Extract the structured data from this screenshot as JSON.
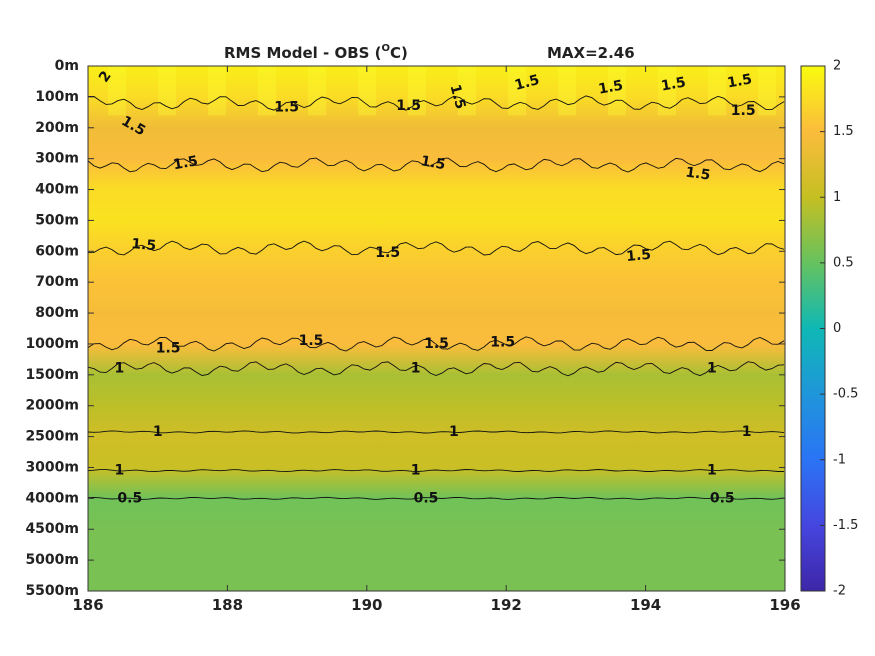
{
  "chart_data": {
    "type": "heatmap",
    "title": "RMS Model - OBS (",
    "title_unit": "C)",
    "title_degree": "O",
    "max_label": "MAX=2.46",
    "x_ticks": [
      "186",
      "188",
      "190",
      "192",
      "194",
      "196"
    ],
    "xlim": [
      186,
      196
    ],
    "y_ticks": [
      "0m",
      "100m",
      "200m",
      "300m",
      "400m",
      "500m",
      "600m",
      "700m",
      "800m",
      "1000m",
      "1500m",
      "2000m",
      "2500m",
      "3000m",
      "4000m",
      "4500m",
      "5000m",
      "5500m"
    ],
    "colorbar": {
      "ticks": [
        "2",
        "1.5",
        "1",
        "0.5",
        "0",
        "-0.5",
        "-1",
        "-1.5",
        "-2"
      ],
      "range": [
        -2,
        2
      ]
    },
    "depth_profile": [
      1.9,
      1.75,
      1.4,
      1.5,
      1.75,
      1.8,
      1.65,
      1.55,
      1.45,
      1.5,
      0.85,
      0.95,
      1.1,
      1.05,
      0.55,
      0.6,
      0.6,
      0.6
    ],
    "contour_levels": [
      {
        "value": 1.5,
        "label": "1.5",
        "depth_index": 1.2
      },
      {
        "value": 1.5,
        "label": "1.5",
        "depth_index": 3.2
      },
      {
        "value": 1.5,
        "label": "1.5",
        "depth_index": 5.9
      },
      {
        "value": 1.5,
        "label": "1.5",
        "depth_index": 9.0
      },
      {
        "value": 1,
        "label": "1",
        "depth_index": 9.8
      },
      {
        "value": 1,
        "label": "1",
        "depth_index": 11.85
      },
      {
        "value": 1,
        "label": "1",
        "depth_index": 13.1
      },
      {
        "value": 0.5,
        "label": "0.5",
        "depth_index": 14.0
      }
    ],
    "contour_labels": [
      {
        "text": "2",
        "x": 186.25,
        "y": 0.35,
        "rot": -55
      },
      {
        "text": "1.5",
        "x": 186.65,
        "y": 1.95,
        "rot": 30
      },
      {
        "text": "1.5",
        "x": 187.4,
        "y": 3.15,
        "rot": -10
      },
      {
        "text": "1.5",
        "x": 188.85,
        "y": 1.35,
        "rot": 0
      },
      {
        "text": "1.5",
        "x": 190.6,
        "y": 1.3,
        "rot": 0
      },
      {
        "text": "1.5",
        "x": 191.3,
        "y": 1.0,
        "rot": 75
      },
      {
        "text": "1.5",
        "x": 192.3,
        "y": 0.55,
        "rot": -15
      },
      {
        "text": "1.5",
        "x": 193.5,
        "y": 0.7,
        "rot": -10
      },
      {
        "text": "1.5",
        "x": 194.4,
        "y": 0.6,
        "rot": -10
      },
      {
        "text": "1.5",
        "x": 195.35,
        "y": 0.5,
        "rot": -10
      },
      {
        "text": "1.5",
        "x": 195.4,
        "y": 1.45,
        "rot": 0
      },
      {
        "text": "1.5",
        "x": 190.95,
        "y": 3.15,
        "rot": 10
      },
      {
        "text": "1.5",
        "x": 194.75,
        "y": 3.5,
        "rot": 8
      },
      {
        "text": "1.5",
        "x": 186.8,
        "y": 5.8,
        "rot": 5
      },
      {
        "text": "1.5",
        "x": 190.3,
        "y": 6.05,
        "rot": 0
      },
      {
        "text": "1.5",
        "x": 193.9,
        "y": 6.15,
        "rot": -5
      },
      {
        "text": "1.5",
        "x": 189.2,
        "y": 8.9,
        "rot": 0
      },
      {
        "text": "1.5",
        "x": 187.15,
        "y": 9.15,
        "rot": 0
      },
      {
        "text": "1.5",
        "x": 191.0,
        "y": 9.0,
        "rot": 0
      },
      {
        "text": "1.5",
        "x": 191.95,
        "y": 8.95,
        "rot": 0
      },
      {
        "text": "1",
        "x": 186.45,
        "y": 9.8,
        "rot": 0
      },
      {
        "text": "1",
        "x": 190.7,
        "y": 9.8,
        "rot": 0
      },
      {
        "text": "1",
        "x": 194.95,
        "y": 9.8,
        "rot": 0
      },
      {
        "text": "1",
        "x": 187.0,
        "y": 11.85,
        "rot": 0
      },
      {
        "text": "1",
        "x": 191.25,
        "y": 11.85,
        "rot": 0
      },
      {
        "text": "1",
        "x": 195.45,
        "y": 11.85,
        "rot": 0
      },
      {
        "text": "1",
        "x": 186.45,
        "y": 13.1,
        "rot": 0
      },
      {
        "text": "1",
        "x": 190.7,
        "y": 13.1,
        "rot": 0
      },
      {
        "text": "1",
        "x": 194.95,
        "y": 13.1,
        "rot": 0
      },
      {
        "text": "0.5",
        "x": 186.6,
        "y": 14.0,
        "rot": 0
      },
      {
        "text": "0.5",
        "x": 190.85,
        "y": 14.0,
        "rot": 0
      },
      {
        "text": "0.5",
        "x": 195.1,
        "y": 14.0,
        "rot": 0
      }
    ]
  }
}
